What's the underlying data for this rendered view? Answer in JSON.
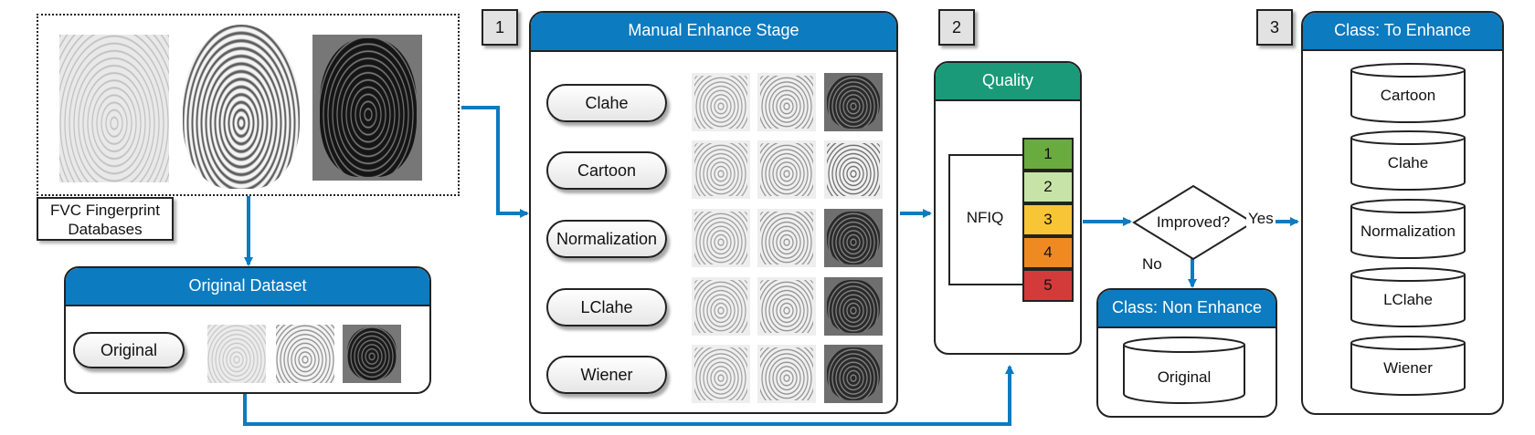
{
  "source": {
    "label": "FVC Fingerprint Databases"
  },
  "original_dataset": {
    "title": "Original Dataset",
    "method": "Original"
  },
  "steps": {
    "one": "1",
    "two": "2",
    "three": "3"
  },
  "manual_stage": {
    "title": "Manual Enhance Stage",
    "methods": [
      "Clahe",
      "Cartoon",
      "Normalization",
      "LClahe",
      "Wiener"
    ]
  },
  "quality": {
    "title": "Quality",
    "tool": "NFIQ",
    "levels": [
      {
        "value": "1",
        "color": "#6aab3f"
      },
      {
        "value": "2",
        "color": "#c7e3a8"
      },
      {
        "value": "3",
        "color": "#f8c537"
      },
      {
        "value": "4",
        "color": "#ef8a22"
      },
      {
        "value": "5",
        "color": "#d33a3a"
      }
    ]
  },
  "decision": {
    "label": "Improved?",
    "yes": "Yes",
    "no": "No"
  },
  "non_enhance": {
    "title": "Class: Non Enhance",
    "item": "Original"
  },
  "to_enhance": {
    "title": "Class: To Enhance",
    "items": [
      "Cartoon",
      "Clahe",
      "Normalization",
      "LClahe",
      "Wiener"
    ]
  },
  "colors": {
    "accent": "#0c7bc0",
    "quality_header": "#1a9a78",
    "arrow": "#0c7bc0"
  }
}
